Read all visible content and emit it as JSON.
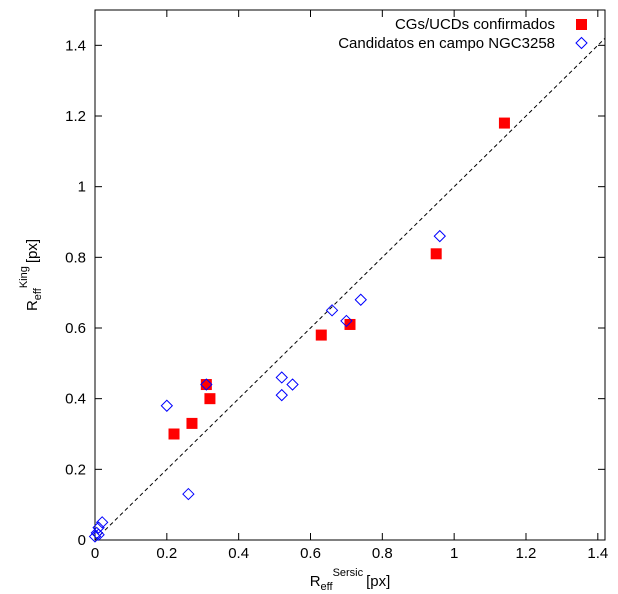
{
  "chart_data": {
    "type": "scatter",
    "xlabel": {
      "base": "R",
      "sub": "eff",
      "sup": "Sersic",
      "unit": "[px]"
    },
    "ylabel": {
      "base": "R",
      "sub": "eff",
      "sup": "King",
      "unit": "[px]"
    },
    "xlim": [
      0,
      1.42
    ],
    "ylim": [
      0,
      1.5
    ],
    "xticks": [
      0,
      0.2,
      0.4,
      0.6,
      0.8,
      1,
      1.2,
      1.4
    ],
    "xtick_labels": [
      "0",
      "0.2",
      "0.4",
      "0.6",
      "0.8",
      "1",
      "1.2",
      "1.4"
    ],
    "yticks": [
      0,
      0.2,
      0.4,
      0.6,
      0.8,
      1,
      1.2,
      1.4
    ],
    "ytick_labels": [
      "0",
      "0.2",
      "0.4",
      "0.6",
      "0.8",
      "1",
      "1.2",
      "1.4"
    ],
    "grid": false,
    "legend_position": "top-right",
    "reference_line": {
      "style": "dashed",
      "slope": 1,
      "intercept": 0,
      "color": "#000000"
    },
    "series": [
      {
        "name": "CGs/UCDs confirmados",
        "marker": "filled-square",
        "color": "#ff0000",
        "points": [
          [
            0.22,
            0.3
          ],
          [
            0.27,
            0.33
          ],
          [
            0.31,
            0.44
          ],
          [
            0.32,
            0.4
          ],
          [
            0.63,
            0.58
          ],
          [
            0.71,
            0.61
          ],
          [
            0.95,
            0.81
          ],
          [
            1.14,
            1.18
          ]
        ]
      },
      {
        "name": "Candidatos en campo NGC3258",
        "marker": "open-diamond",
        "color": "#0000ff",
        "points": [
          [
            0.0,
            0.01
          ],
          [
            0.005,
            0.02
          ],
          [
            0.01,
            0.035
          ],
          [
            0.01,
            0.015
          ],
          [
            0.02,
            0.05
          ],
          [
            0.2,
            0.38
          ],
          [
            0.26,
            0.13
          ],
          [
            0.31,
            0.44
          ],
          [
            0.52,
            0.41
          ],
          [
            0.52,
            0.46
          ],
          [
            0.55,
            0.44
          ],
          [
            0.66,
            0.65
          ],
          [
            0.7,
            0.62
          ],
          [
            0.74,
            0.68
          ],
          [
            0.96,
            0.86
          ]
        ]
      }
    ]
  }
}
